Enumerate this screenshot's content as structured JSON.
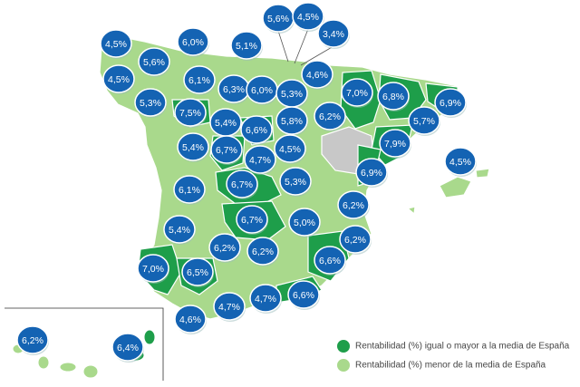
{
  "labels": [
    "4,5%",
    "6,0%",
    "5,1%",
    "5,6%",
    "4,5%",
    "3,4%",
    "5,6%",
    "4,5%",
    "6,1%",
    "6,3%",
    "6,0%",
    "5,3%",
    "4,6%",
    "5,3%",
    "7,0%",
    "6,8%",
    "6,9%",
    "7,5%",
    "5,4%",
    "6,6%",
    "5,8%",
    "6,2%",
    "5,7%",
    "5,4%",
    "6,7%",
    "4,5%",
    "7,9%",
    "4,7%",
    "4,5%",
    "6,9%",
    "6,7%",
    "5,3%",
    "6,1%",
    "6,2%",
    "6,7%",
    "5,0%",
    "5,4%",
    "6,2%",
    "6,2%",
    "6,2%",
    "6,6%",
    "7,0%",
    "6,5%",
    "4,7%",
    "4,7%",
    "6,6%",
    "4,6%",
    "6,2%",
    "6,4%"
  ],
  "legend": {
    "above": "Rentabilidad (%) igual o mayor a la media de España",
    "below": "Rentabilidad (%) menor de la media de España"
  }
}
